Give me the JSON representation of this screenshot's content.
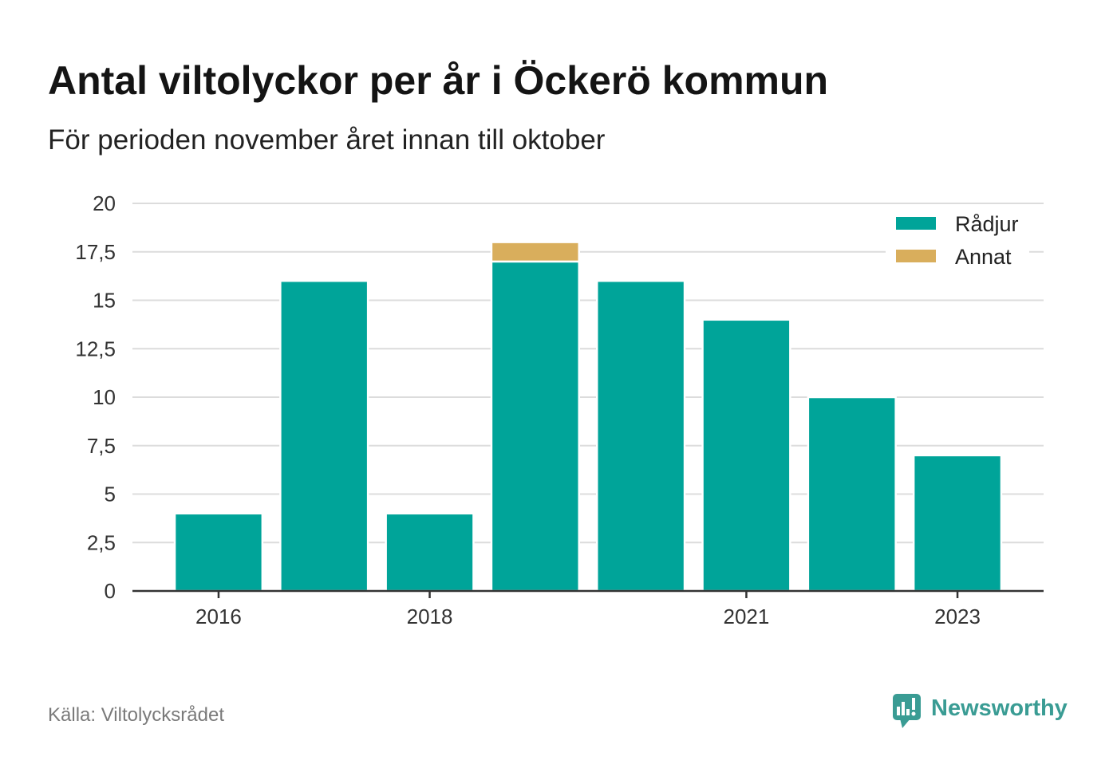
{
  "chart_data": {
    "type": "bar",
    "stacked": true,
    "title": "Antal viltolyckor per år i Öckerö kommun",
    "subtitle": "För perioden november året innan till oktober",
    "x": [
      2016,
      2017,
      2018,
      2019,
      2020,
      2021,
      2022,
      2023
    ],
    "x_ticks": [
      2016,
      2018,
      2021,
      2023
    ],
    "x_tick_labels": [
      "2016",
      "2018",
      "2021",
      "2023"
    ],
    "series": [
      {
        "name": "Rådjur",
        "color": "#00a499",
        "values": [
          4,
          16,
          4,
          17,
          16,
          14,
          10,
          7
        ]
      },
      {
        "name": "Annat",
        "color": "#d9ae5c",
        "values": [
          0,
          0,
          0,
          1,
          0,
          0,
          0,
          0
        ]
      }
    ],
    "ylim": [
      0,
      20
    ],
    "y_ticks": [
      0,
      2.5,
      5,
      7.5,
      10,
      12.5,
      15,
      17.5,
      20
    ],
    "y_tick_labels": [
      "0",
      "2,5",
      "5",
      "7,5",
      "10",
      "12,5",
      "15",
      "17,5",
      "20"
    ],
    "grid": true,
    "legend": "top-right"
  },
  "source": "Källa: Viltolycksrådet",
  "brand": {
    "name": "Newsworthy",
    "icon": "chart-bubble-icon",
    "color": "#3a9c94"
  }
}
